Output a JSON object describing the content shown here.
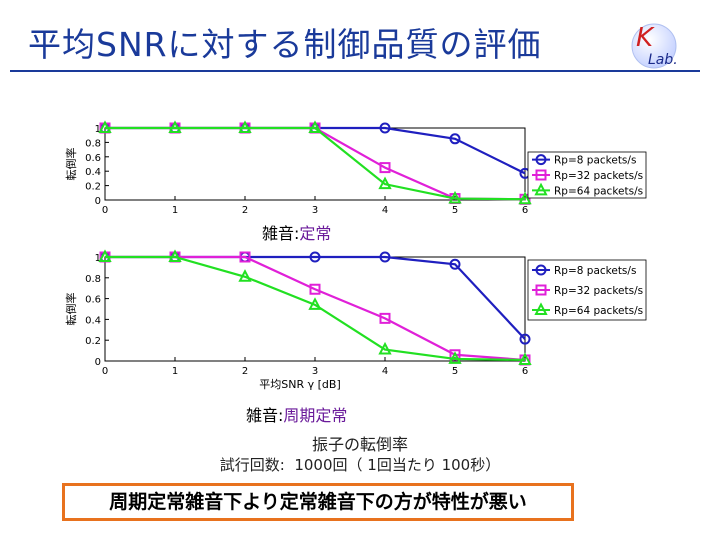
{
  "slide": {
    "title": "平均SNRに対する制御品質の評価",
    "logo": {
      "main": "K",
      "sub": "Lab."
    },
    "noise_label_1": {
      "key": "雑音:",
      "value": "定常"
    },
    "noise_label_2": {
      "key": "雑音:",
      "value": "周期定常"
    },
    "description_line1": "振子の転倒率",
    "description_line2": "試行回数:  1000回（ 1回当たり 100秒）",
    "conclusion": "周期定常雑音下より定常雑音下の方が特性が悪い"
  },
  "chart_data": [
    {
      "type": "line",
      "x": [
        0,
        1,
        2,
        3,
        4,
        5,
        6
      ],
      "xlim": [
        0,
        6
      ],
      "ylim": [
        0,
        1
      ],
      "xlabel": "",
      "ylabel": "転倒率",
      "xticks": [
        "0",
        "1",
        "2",
        "3",
        "4",
        "5",
        "6"
      ],
      "yticks": [
        "0",
        "0.2",
        "0.4",
        "0.6",
        "0.8",
        "1"
      ],
      "legend_position": "right",
      "series": [
        {
          "name": "Rp=8 packets/s",
          "color": "#1f1fbf",
          "marker": "circle",
          "values": [
            1,
            1,
            1,
            1,
            1,
            0.85,
            0.37
          ]
        },
        {
          "name": "Rp=32 packets/s",
          "color": "#e020d8",
          "marker": "square",
          "values": [
            1,
            1,
            1,
            1,
            0.45,
            0.02,
            0.01
          ]
        },
        {
          "name": "Rp=64 packets/s",
          "color": "#22e022",
          "marker": "triangle",
          "values": [
            1,
            1,
            1,
            1,
            0.22,
            0.02,
            0.01
          ]
        }
      ]
    },
    {
      "type": "line",
      "x": [
        0,
        1,
        2,
        3,
        4,
        5,
        6
      ],
      "xlim": [
        0,
        6
      ],
      "ylim": [
        0,
        1
      ],
      "xlabel": "平均SNR γ [dB]",
      "ylabel": "転倒率",
      "xticks": [
        "0",
        "1",
        "2",
        "3",
        "4",
        "5",
        "6"
      ],
      "yticks": [
        "0",
        "0.2",
        "0.4",
        "0.6",
        "0.8",
        "1"
      ],
      "legend_position": "right",
      "series": [
        {
          "name": "Rp=8 packets/s",
          "color": "#1f1fbf",
          "marker": "circle",
          "values": [
            1,
            1,
            1,
            1,
            1,
            0.93,
            0.21
          ]
        },
        {
          "name": "Rp=32 packets/s",
          "color": "#e020d8",
          "marker": "square",
          "values": [
            1,
            1,
            1,
            0.69,
            0.41,
            0.06,
            0.01
          ]
        },
        {
          "name": "Rp=64 packets/s",
          "color": "#22e022",
          "marker": "triangle",
          "values": [
            1,
            1,
            0.81,
            0.54,
            0.11,
            0.02,
            0.01
          ]
        }
      ]
    }
  ]
}
